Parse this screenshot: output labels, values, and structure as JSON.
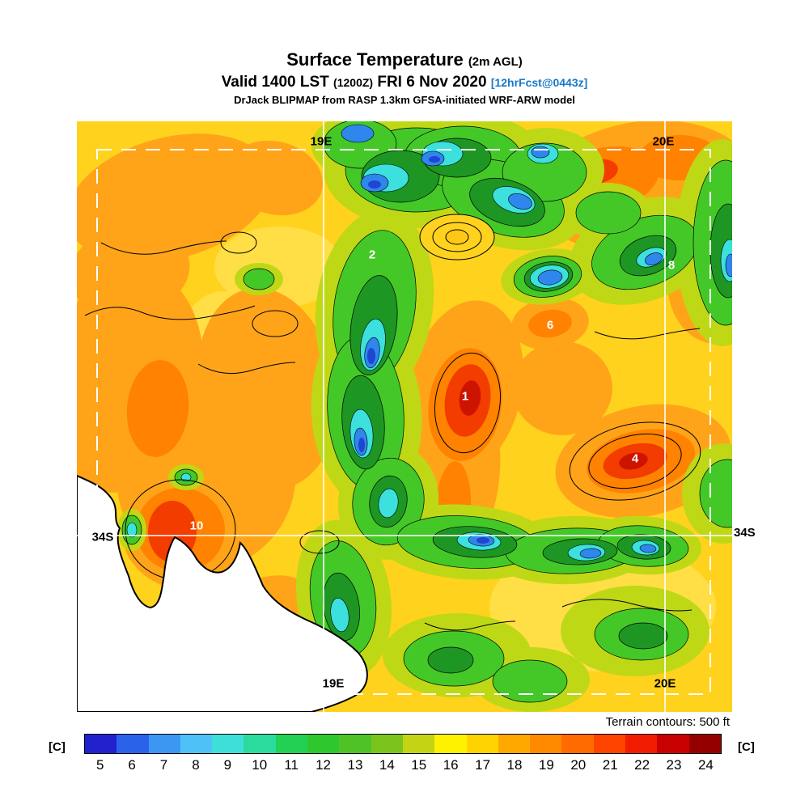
{
  "header": {
    "title": "Surface Temperature",
    "title_suffix": "(2m AGL)",
    "valid_prefix": "Valid 1400 LST",
    "valid_zulu": "(1200Z)",
    "valid_date": "FRI 6 Nov 2020",
    "forecast_stamp": "[12hrFcst@0443z]",
    "model_line": "DrJack BLIPMAP from RASP 1.3km GFSA-initiated WRF-ARW model"
  },
  "map": {
    "grid_labels": [
      {
        "text": "19E",
        "position": "top"
      },
      {
        "text": "20E",
        "position": "top-right"
      },
      {
        "text": "34S",
        "position": "left"
      },
      {
        "text": "34S",
        "position": "right"
      },
      {
        "text": "19E",
        "position": "bottom"
      },
      {
        "text": "20E",
        "position": "bottom-right"
      }
    ],
    "region_markers": [
      "2",
      "8",
      "6",
      "1",
      "4",
      "10"
    ],
    "terrain_note": "Terrain contours: 500 ft"
  },
  "colorbar": {
    "unit_left": "[C]",
    "unit_right": "[C]",
    "stops": [
      {
        "value": 5,
        "color": "#2121CE"
      },
      {
        "value": 6,
        "color": "#2A62EA"
      },
      {
        "value": 7,
        "color": "#3B97F2"
      },
      {
        "value": 8,
        "color": "#4EC1F6"
      },
      {
        "value": 9,
        "color": "#3EDFD8"
      },
      {
        "value": 10,
        "color": "#2BDB9E"
      },
      {
        "value": 11,
        "color": "#22D053"
      },
      {
        "value": 12,
        "color": "#2EC72E"
      },
      {
        "value": 13,
        "color": "#4FC326"
      },
      {
        "value": 14,
        "color": "#7BC41E"
      },
      {
        "value": 15,
        "color": "#C4D414"
      },
      {
        "value": 16,
        "color": "#FFF200"
      },
      {
        "value": 17,
        "color": "#FFD300"
      },
      {
        "value": 18,
        "color": "#FFA800"
      },
      {
        "value": 19,
        "color": "#FF8A00"
      },
      {
        "value": 20,
        "color": "#FF6B00"
      },
      {
        "value": 21,
        "color": "#FF4400"
      },
      {
        "value": 22,
        "color": "#F21D00"
      },
      {
        "value": 23,
        "color": "#C90000"
      },
      {
        "value": 24,
        "color": "#940000"
      }
    ]
  },
  "colors": {
    "forecast_stamp": "#1878C8"
  },
  "chart_data": {
    "type": "heatmap",
    "title": "Surface Temperature (2m AGL)",
    "valid": "Valid 1400 LST (1200Z) FRI 6 Nov 2020",
    "forecast_stamp": "12hrFcst@0443z",
    "model": "DrJack BLIPMAP from RASP 1.3km GFSA-initiated WRF-ARW model",
    "units": "C",
    "scale_values": [
      5,
      6,
      7,
      8,
      9,
      10,
      11,
      12,
      13,
      14,
      15,
      16,
      17,
      18,
      19,
      20,
      21,
      22,
      23,
      24
    ],
    "scale_colors": [
      "#2121CE",
      "#2A62EA",
      "#3B97F2",
      "#4EC1F6",
      "#3EDFD8",
      "#2BDB9E",
      "#22D053",
      "#2EC72E",
      "#4FC326",
      "#7BC41E",
      "#C4D414",
      "#FFF200",
      "#FFD300",
      "#FFA800",
      "#FF8A00",
      "#FF6B00",
      "#FF4400",
      "#F21D00",
      "#C90000",
      "#940000"
    ],
    "terrain_contour_interval_ft": 500,
    "graticule": {
      "longitudes": [
        "19E",
        "20E"
      ],
      "latitudes": [
        "34S"
      ]
    },
    "region_markers": [
      "2",
      "8",
      "6",
      "1",
      "4",
      "10"
    ],
    "legend_position": "bottom"
  }
}
